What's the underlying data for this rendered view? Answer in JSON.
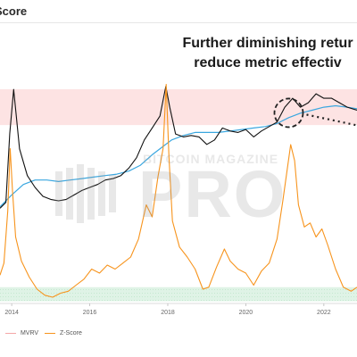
{
  "header": {
    "title": "Score"
  },
  "annotation": {
    "line1": "Further diminishing retur",
    "line2": "reduce metric effectiv"
  },
  "watermark": {
    "small": "BITCOIN MAGAZINE",
    "big": "PRO"
  },
  "legend": [
    {
      "label": "MVRV",
      "color": "#f4a6a6"
    },
    {
      "label": "Z-Score",
      "color": "#f7941d"
    }
  ],
  "colors": {
    "price": "#111111",
    "realized": "#3aa7e0",
    "zscore": "#f7941d",
    "red_band": "#fde3e3",
    "green_band": "#dff3e6",
    "dashed": "#222222"
  },
  "chart_data": {
    "type": "line",
    "x_ticks": [
      "2014",
      "2016",
      "2018",
      "2020",
      "2022"
    ],
    "x_range": [
      2013.7,
      2022.85
    ],
    "series": [
      {
        "name": "MVRV",
        "x": [
          2013.7,
          2013.85,
          2013.95,
          2014.05,
          2014.2,
          2014.4,
          2014.6,
          2014.8,
          2015.0,
          2015.2,
          2015.4,
          2015.6,
          2015.8,
          2016.0,
          2016.2,
          2016.4,
          2016.6,
          2016.8,
          2017.0,
          2017.2,
          2017.4,
          2017.6,
          2017.8,
          2017.95,
          2018.05,
          2018.2,
          2018.4,
          2018.6,
          2018.8,
          2019.0,
          2019.2,
          2019.4,
          2019.6,
          2019.8,
          2020.0,
          2020.2,
          2020.4,
          2020.6,
          2020.8,
          2021.0,
          2021.2,
          2021.4,
          2021.6,
          2021.8,
          2022.0,
          2022.2,
          2022.4,
          2022.6,
          2022.85
        ],
        "values": [
          0.5,
          0.7,
          3.0,
          4.5,
          2.5,
          1.6,
          1.2,
          0.9,
          0.8,
          0.75,
          0.8,
          0.95,
          1.1,
          1.2,
          1.3,
          1.45,
          1.5,
          1.6,
          1.85,
          2.2,
          2.8,
          3.2,
          3.6,
          4.6,
          3.9,
          3.0,
          2.9,
          2.95,
          2.9,
          2.65,
          2.8,
          3.2,
          3.1,
          3.05,
          3.15,
          2.9,
          3.1,
          3.25,
          3.4,
          3.9,
          4.2,
          3.9,
          4.05,
          4.35,
          4.2,
          4.2,
          4.05,
          3.9,
          3.8
        ]
      },
      {
        "name": "Z-Score",
        "x": [
          2013.7,
          2013.8,
          2013.9,
          2013.96,
          2014.02,
          2014.1,
          2014.25,
          2014.45,
          2014.65,
          2014.85,
          2015.05,
          2015.25,
          2015.45,
          2015.65,
          2015.85,
          2016.05,
          2016.25,
          2016.45,
          2016.65,
          2016.85,
          2017.05,
          2017.25,
          2017.45,
          2017.6,
          2017.75,
          2017.88,
          2017.96,
          2018.03,
          2018.12,
          2018.3,
          2018.5,
          2018.7,
          2018.9,
          2019.05,
          2019.25,
          2019.45,
          2019.6,
          2019.8,
          2020.0,
          2020.2,
          2020.4,
          2020.6,
          2020.8,
          2020.95,
          2021.05,
          2021.15,
          2021.25,
          2021.35,
          2021.5,
          2021.65,
          2021.8,
          2021.95,
          2022.1,
          2022.3,
          2022.5,
          2022.7,
          2022.85
        ],
        "values": [
          0.3,
          0.9,
          3.5,
          6.6,
          4.5,
          2.2,
          1.0,
          0.2,
          -0.4,
          -0.7,
          -0.8,
          -0.6,
          -0.5,
          -0.2,
          0.1,
          0.6,
          0.4,
          0.8,
          0.6,
          0.9,
          1.2,
          2.1,
          3.8,
          3.2,
          5.2,
          6.6,
          9.8,
          6.2,
          3.0,
          1.7,
          1.2,
          0.6,
          -0.4,
          -0.3,
          0.7,
          1.6,
          1.0,
          0.6,
          0.4,
          -0.2,
          0.5,
          0.9,
          2.1,
          4.0,
          5.4,
          6.8,
          6.0,
          3.8,
          2.7,
          2.9,
          2.2,
          2.6,
          1.8,
          0.6,
          -0.3,
          -0.5,
          -0.3
        ]
      }
    ],
    "realized_price": {
      "x": [
        2013.7,
        2014.0,
        2014.3,
        2014.6,
        2014.9,
        2015.2,
        2015.5,
        2015.8,
        2016.1,
        2016.4,
        2016.7,
        2017.0,
        2017.3,
        2017.6,
        2017.9,
        2018.1,
        2018.4,
        2018.7,
        2019.0,
        2019.3,
        2019.6,
        2019.9,
        2020.2,
        2020.5,
        2020.8,
        2021.1,
        2021.4,
        2021.7,
        2022.0,
        2022.3,
        2022.6,
        2022.85
      ],
      "values": [
        0.55,
        0.95,
        1.3,
        1.45,
        1.45,
        1.4,
        1.45,
        1.5,
        1.55,
        1.6,
        1.65,
        1.75,
        1.95,
        2.3,
        2.6,
        2.8,
        2.95,
        3.05,
        3.05,
        3.05,
        3.1,
        3.15,
        3.2,
        3.25,
        3.35,
        3.55,
        3.7,
        3.8,
        3.9,
        3.95,
        3.9,
        3.85
      ]
    },
    "bands": {
      "red": [
        3.3,
        4.8
      ],
      "green": [
        -1.0,
        -0.3
      ]
    },
    "annotation_point": {
      "x": 2021.1,
      "y": 3.8
    },
    "grid": false
  }
}
